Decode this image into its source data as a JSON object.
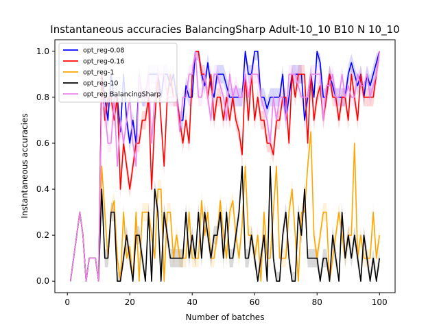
{
  "chart_data": {
    "type": "line",
    "title": "Instantaneous accuracies BalancingSharp Adult-10_10 B10 N 10_10",
    "xlabel": "Number of batches",
    "ylabel": "Instantaneous accuracies",
    "xlim": [
      -4,
      105
    ],
    "ylim": [
      -0.05,
      1.05
    ],
    "xticks": [
      0,
      20,
      40,
      60,
      80,
      100
    ],
    "yticks": [
      0.0,
      0.2,
      0.4,
      0.6,
      0.8,
      1.0
    ],
    "ytick_labels": [
      "0.0",
      "0.2",
      "0.4",
      "0.6",
      "0.8",
      "1.0"
    ],
    "legend_position": "upper left",
    "series": [
      {
        "name": "opt_reg-0.08",
        "color": "#0000ff",
        "values": [
          0.0,
          0.1,
          0.2,
          0.3,
          0.2,
          0.0,
          0.1,
          0.1,
          0.1,
          0.0,
          0.9,
          0.8,
          0.7,
          0.9,
          0.8,
          0.8,
          0.65,
          0.9,
          0.7,
          0.6,
          0.7,
          0.6,
          0.9,
          0.8,
          0.8,
          0.9,
          0.9,
          0.9,
          0.9,
          0.8,
          0.9,
          0.9,
          0.85,
          0.9,
          0.8,
          0.7,
          0.7,
          0.85,
          0.8,
          0.8,
          1.0,
          1.0,
          0.9,
          0.85,
          0.95,
          0.85,
          0.8,
          0.9,
          0.9,
          0.9,
          0.85,
          0.8,
          0.8,
          0.8,
          0.8,
          0.8,
          1.0,
          0.9,
          0.9,
          1.0,
          1.0,
          0.8,
          0.8,
          0.75,
          0.8,
          0.8,
          0.8,
          0.8,
          0.9,
          0.7,
          0.8,
          0.9,
          0.9,
          0.9,
          0.9,
          0.7,
          0.8,
          0.9,
          0.8,
          1.0,
          0.95,
          0.8,
          0.8,
          0.9,
          0.85,
          0.8,
          0.8,
          0.8,
          0.8,
          0.9,
          0.95,
          0.9,
          0.85,
          0.9,
          0.8,
          0.9,
          0.85,
          0.9,
          0.95,
          1.0
        ]
      },
      {
        "name": "opt_reg-0.16",
        "color": "#ff0000",
        "values": [
          0.0,
          0.1,
          0.2,
          0.3,
          0.2,
          0.0,
          0.1,
          0.1,
          0.1,
          0.0,
          0.9,
          0.7,
          0.8,
          0.8,
          0.7,
          0.8,
          0.4,
          0.6,
          0.5,
          0.4,
          0.5,
          0.6,
          0.6,
          0.7,
          0.7,
          0.8,
          0.4,
          0.7,
          0.9,
          0.7,
          0.5,
          0.8,
          0.9,
          0.8,
          0.8,
          0.7,
          0.6,
          0.7,
          0.6,
          0.9,
          1.0,
          1.0,
          0.9,
          0.9,
          0.8,
          0.9,
          0.7,
          0.8,
          0.8,
          0.7,
          0.8,
          0.7,
          0.8,
          0.7,
          0.65,
          0.55,
          0.9,
          0.7,
          0.9,
          0.7,
          0.8,
          0.7,
          0.7,
          0.6,
          0.6,
          0.55,
          0.7,
          0.7,
          0.8,
          0.8,
          0.6,
          0.9,
          0.8,
          0.9,
          0.9,
          0.9,
          0.6,
          0.9,
          0.7,
          0.8,
          0.85,
          0.7,
          0.8,
          0.9,
          0.8,
          0.8,
          0.7,
          0.8,
          0.8,
          0.7,
          0.9,
          0.8,
          0.7,
          0.9,
          0.8,
          0.8,
          0.8,
          0.8,
          0.9,
          1.0
        ]
      },
      {
        "name": "opt_reg-1",
        "color": "#ffa500",
        "values": [
          0.0,
          0.1,
          0.2,
          0.3,
          0.2,
          0.0,
          0.1,
          0.1,
          0.1,
          0.0,
          0.5,
          0.3,
          0.1,
          0.3,
          0.35,
          0.1,
          0.0,
          0.3,
          0.1,
          0.15,
          0.0,
          0.3,
          0.0,
          0.3,
          0.3,
          0.3,
          0.2,
          0.1,
          0.4,
          0.4,
          0.0,
          0.3,
          0.3,
          0.1,
          0.2,
          0.1,
          0.1,
          0.1,
          0.3,
          0.1,
          0.1,
          0.1,
          0.35,
          0.2,
          0.3,
          0.1,
          0.1,
          0.2,
          0.35,
          0.2,
          0.1,
          0.3,
          0.35,
          0.2,
          0.1,
          0.25,
          0.5,
          0.2,
          0.2,
          0.1,
          0.2,
          0.0,
          0.3,
          0.1,
          0.1,
          0.3,
          0.5,
          0.1,
          0.1,
          0.1,
          0.3,
          0.4,
          0.2,
          0.0,
          0.3,
          0.3,
          0.5,
          0.65,
          0.2,
          0.1,
          0.2,
          0.3,
          0.3,
          0.0,
          0.1,
          0.2,
          0.3,
          0.2,
          0.1,
          0.2,
          0.2,
          0.6,
          0.1,
          0.2,
          0.1,
          0.1,
          0.1,
          0.3,
          0.1,
          0.2
        ]
      },
      {
        "name": "opt_reg-10",
        "color": "#000000",
        "values": [
          0.0,
          0.1,
          0.2,
          0.3,
          0.2,
          0.0,
          0.1,
          0.1,
          0.1,
          0.0,
          0.4,
          0.1,
          0.1,
          0.3,
          0.3,
          0.0,
          0.0,
          0.1,
          0.2,
          0.1,
          0.0,
          0.2,
          0.2,
          0.1,
          0.0,
          0.3,
          0.0,
          0.4,
          0.3,
          0.0,
          0.3,
          0.2,
          0.1,
          0.1,
          0.1,
          0.1,
          0.1,
          0.3,
          0.1,
          0.2,
          0.1,
          0.3,
          0.1,
          0.3,
          0.2,
          0.1,
          0.2,
          0.2,
          0.3,
          0.1,
          0.3,
          0.1,
          0.1,
          0.2,
          0.3,
          0.5,
          0.1,
          0.1,
          0.2,
          0.1,
          0.0,
          0.1,
          0.2,
          0.0,
          0.5,
          0.1,
          0.0,
          0.0,
          0.2,
          0.3,
          0.1,
          0.0,
          0.0,
          0.3,
          0.2,
          0.4,
          0.1,
          0.1,
          0.1,
          0.1,
          0.0,
          0.1,
          0.1,
          0.0,
          0.2,
          0.1,
          0.0,
          0.3,
          0.1,
          0.2,
          0.1,
          0.2,
          0.1,
          0.0,
          0.2,
          0.1,
          0.0,
          0.1,
          0.0,
          0.1
        ]
      },
      {
        "name": "opt_reg BalancingSharp",
        "color": "#ee82ee",
        "values": [
          0.0,
          0.1,
          0.2,
          0.3,
          0.2,
          0.0,
          0.1,
          0.1,
          0.1,
          0.0,
          0.8,
          0.75,
          0.6,
          0.6,
          0.8,
          0.5,
          0.7,
          0.6,
          0.7,
          0.8,
          0.6,
          0.5,
          0.9,
          0.8,
          0.8,
          0.9,
          0.6,
          0.8,
          0.9,
          0.9,
          0.9,
          0.8,
          0.8,
          0.8,
          0.8,
          0.65,
          0.8,
          0.8,
          0.9,
          0.9,
          1.0,
          0.8,
          0.8,
          0.9,
          0.8,
          0.7,
          0.9,
          0.9,
          0.85,
          0.8,
          0.7,
          0.9,
          0.8,
          0.85,
          0.8,
          0.8,
          0.9,
          0.8,
          0.9,
          0.9,
          0.9,
          0.8,
          0.75,
          0.7,
          0.6,
          0.8,
          0.7,
          0.8,
          0.8,
          0.7,
          0.9,
          0.9,
          0.9,
          0.85,
          0.8,
          0.8,
          0.8,
          0.9,
          0.9,
          0.9,
          0.9,
          0.7,
          0.85,
          0.85,
          0.9,
          0.8,
          0.8,
          0.9,
          0.8,
          0.85,
          0.8,
          0.8,
          0.9,
          0.85,
          0.85,
          0.9,
          0.8,
          0.85,
          0.9,
          1.0
        ]
      }
    ]
  }
}
